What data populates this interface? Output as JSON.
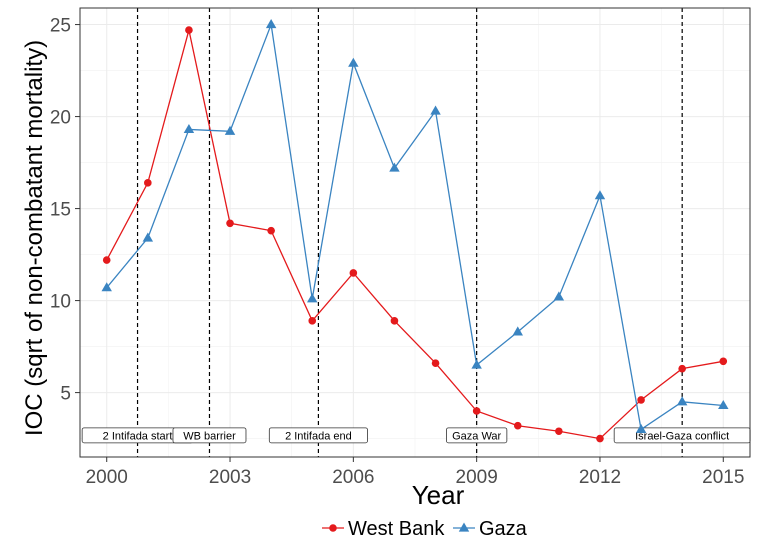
{
  "chart_data": {
    "type": "line",
    "xlabel": "Year",
    "ylabel": "IOC (sqrt of non-combatant mortality)",
    "xlim": [
      1999.35,
      2015.65
    ],
    "ylim": [
      1.5,
      25.9
    ],
    "x_ticks": [
      2000,
      2003,
      2006,
      2009,
      2012,
      2015
    ],
    "y_ticks": [
      5,
      10,
      15,
      20,
      25
    ],
    "grid": true,
    "legend_position": "bottom",
    "series": [
      {
        "name": "West Bank",
        "color": "#e41a1c",
        "marker": "circle",
        "x": [
          2000,
          2001,
          2002,
          2003,
          2004,
          2005,
          2006,
          2007,
          2008,
          2009,
          2010,
          2011,
          2012,
          2013,
          2014,
          2015
        ],
        "y": [
          12.2,
          16.4,
          24.7,
          14.2,
          13.8,
          8.9,
          11.5,
          8.9,
          6.6,
          4.0,
          3.2,
          2.9,
          2.5,
          4.6,
          6.3,
          6.7
        ]
      },
      {
        "name": "Gaza",
        "color": "#3a84c1",
        "marker": "triangle",
        "x": [
          2000,
          2001,
          2002,
          2003,
          2004,
          2005,
          2006,
          2007,
          2008,
          2009,
          2010,
          2011,
          2012,
          2013,
          2014,
          2015
        ],
        "y": [
          10.7,
          13.4,
          19.3,
          19.2,
          25.0,
          10.1,
          22.9,
          17.2,
          20.3,
          6.5,
          8.3,
          10.2,
          15.7,
          3.0,
          4.5,
          4.3
        ]
      }
    ],
    "events": [
      {
        "x": 2000.75,
        "label": "2 Intifada start"
      },
      {
        "x": 2002.5,
        "label": "WB barrier"
      },
      {
        "x": 2005.15,
        "label": "2 Intifada end"
      },
      {
        "x": 2009.0,
        "label": "Gaza War"
      },
      {
        "x": 2014.0,
        "label": "Israel-Gaza conflict"
      }
    ]
  }
}
